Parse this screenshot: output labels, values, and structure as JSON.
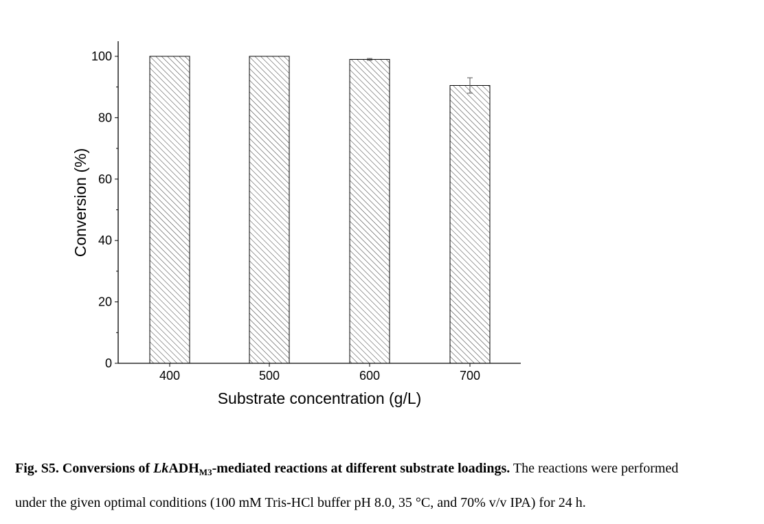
{
  "chart_data": {
    "type": "bar",
    "categories": [
      "400",
      "500",
      "600",
      "700"
    ],
    "values": [
      100,
      100,
      99,
      90.5
    ],
    "errors": [
      0,
      0,
      0.3,
      2.5
    ],
    "xlabel": "Substrate concentration (g/L)",
    "ylabel": "Conversion (%)",
    "ylim": [
      0,
      104
    ],
    "yticks": [
      0,
      20,
      40,
      60,
      80,
      100
    ],
    "bar_fill": "diagonal hatch",
    "grid": false
  },
  "caption": {
    "bold_prefix": "Fig. S5. Conversions of ",
    "bold_italic": "Lk",
    "bold_mid": "ADH",
    "bold_sub": "M3",
    "bold_suffix": "-mediated reactions at different substrate loadings.",
    "line1_rest": " The reactions were performed",
    "line2": "under the given optimal conditions (100 mM Tris-HCl buffer pH 8.0, 35 °C, and 70% v/v IPA) for 24 h."
  },
  "colors": {
    "ink": "#000000",
    "hatch": "#333333",
    "background": "#ffffff"
  }
}
